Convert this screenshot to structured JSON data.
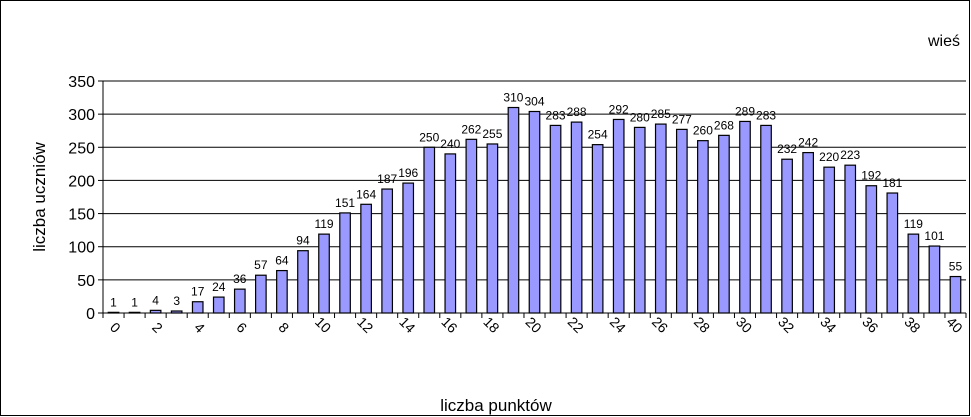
{
  "chart_data": {
    "type": "bar",
    "x_label": "liczba punktów",
    "y_label": "liczba uczniów",
    "categories": [
      "0",
      null,
      "2",
      null,
      "4",
      null,
      "6",
      null,
      "8",
      null,
      "10",
      null,
      "12",
      null,
      "14",
      null,
      "16",
      null,
      "18",
      null,
      "20",
      null,
      "22",
      null,
      "24",
      null,
      "26",
      null,
      "28",
      null,
      "30",
      null,
      "32",
      null,
      "34",
      null,
      "36",
      null,
      "38",
      null,
      "40"
    ],
    "series": [
      {
        "name": "wieś",
        "color": "#9999ff",
        "values": [
          1,
          1,
          4,
          3,
          17,
          24,
          36,
          57,
          64,
          94,
          119,
          151,
          164,
          187,
          196,
          250,
          240,
          262,
          255,
          310,
          304,
          283,
          288,
          254,
          292,
          280,
          285,
          277,
          260,
          268,
          289,
          283,
          232,
          242,
          220,
          223,
          192,
          181,
          119,
          101,
          55
        ]
      }
    ],
    "ylim": [
      0,
      350
    ],
    "yticks": [
      0,
      50,
      100,
      150,
      200,
      250,
      300,
      350
    ],
    "grid": true,
    "legend": "top-right"
  }
}
